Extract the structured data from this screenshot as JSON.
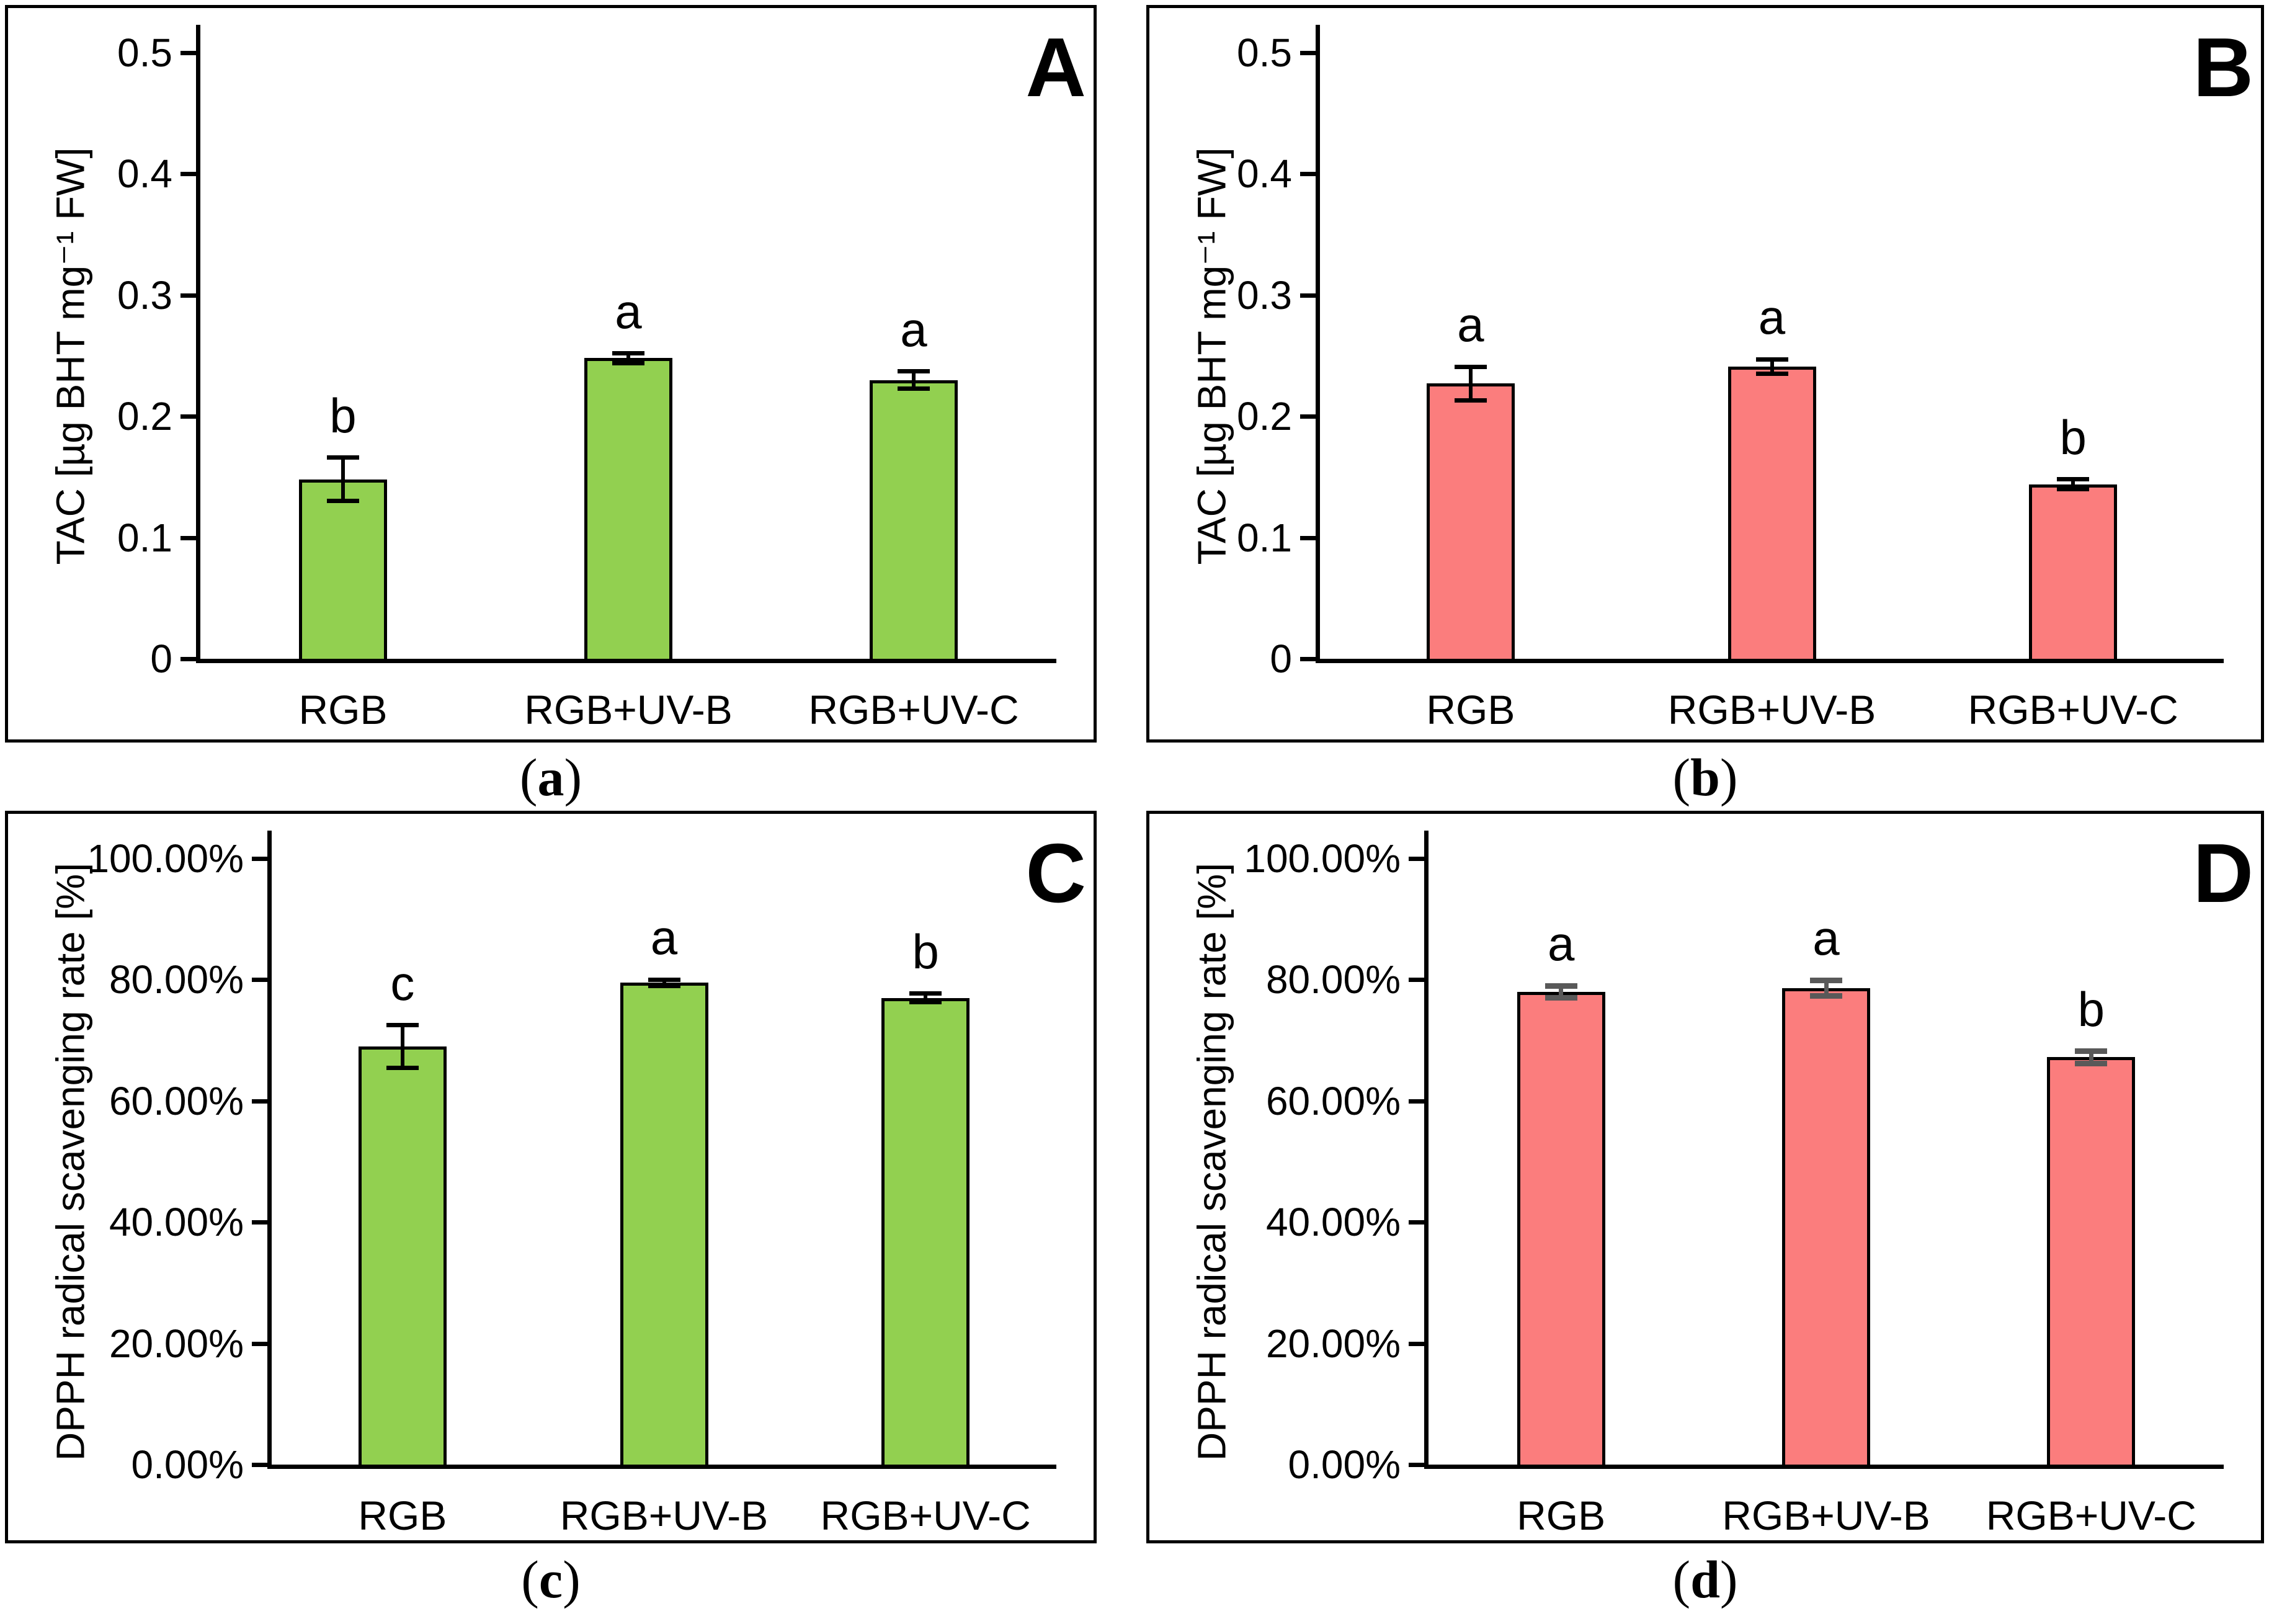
{
  "figure": {
    "background": "#FFFFFF",
    "bar_colors": {
      "green": "#92D050",
      "red": "#FB7D7D"
    },
    "error_colors": {
      "black": "#000000",
      "gray": "#595959"
    }
  },
  "chart_data": [
    {
      "type": "bar",
      "panel_letter": "A",
      "caption_open": "(",
      "caption_letter": "a",
      "caption_close": ")",
      "title": "",
      "xlabel": "",
      "ylabel": "TAC [µg BHT mg⁻¹ FW]",
      "ymin": 0,
      "ymax": 0.5,
      "grid": false,
      "legend": "none",
      "yticks": [
        {
          "value": 0,
          "label": "0"
        },
        {
          "value": 0.1,
          "label": "0.1"
        },
        {
          "value": 0.2,
          "label": "0.2"
        },
        {
          "value": 0.3,
          "label": "0.3"
        },
        {
          "value": 0.4,
          "label": "0.4"
        },
        {
          "value": 0.5,
          "label": "0.5"
        }
      ],
      "categories": [
        "RGB",
        "RGB+UV-B",
        "RGB+UV-C"
      ],
      "series": [
        {
          "name": "TAC",
          "values": [
            0.148,
            0.248,
            0.23
          ],
          "errors": [
            0.018,
            0.004,
            0.007
          ],
          "sig_letters": [
            "b",
            "a",
            "a"
          ]
        }
      ],
      "bar_color": "#92D050",
      "bar_border_color": "#000000",
      "error_color": "#000000"
    },
    {
      "type": "bar",
      "panel_letter": "B",
      "caption_open": "(",
      "caption_letter": "b",
      "caption_close": ")",
      "title": "",
      "xlabel": "",
      "ylabel": "TAC [µg BHT mg⁻¹ FW]",
      "ymin": 0,
      "ymax": 0.5,
      "grid": false,
      "legend": "none",
      "yticks": [
        {
          "value": 0,
          "label": "0"
        },
        {
          "value": 0.1,
          "label": "0.1"
        },
        {
          "value": 0.2,
          "label": "0.2"
        },
        {
          "value": 0.3,
          "label": "0.3"
        },
        {
          "value": 0.4,
          "label": "0.4"
        },
        {
          "value": 0.5,
          "label": "0.5"
        }
      ],
      "categories": [
        "RGB",
        "RGB+UV-B",
        "RGB+UV-C"
      ],
      "series": [
        {
          "name": "TAC",
          "values": [
            0.227,
            0.241,
            0.144
          ],
          "errors": [
            0.014,
            0.006,
            0.004
          ],
          "sig_letters": [
            "a",
            "a",
            "b"
          ]
        }
      ],
      "bar_color": "#FB7D7D",
      "bar_border_color": "#000000",
      "error_color": "#000000"
    },
    {
      "type": "bar",
      "panel_letter": "C",
      "caption_open": "(",
      "caption_letter": "c",
      "caption_close": ")",
      "title": "",
      "xlabel": "",
      "ylabel": "DPPH radical scavenging rate [%]",
      "ymin": 0,
      "ymax": 100,
      "grid": false,
      "legend": "none",
      "yticks": [
        {
          "value": 0,
          "label": "0.00%"
        },
        {
          "value": 20,
          "label": "20.00%"
        },
        {
          "value": 40,
          "label": "40.00%"
        },
        {
          "value": 60,
          "label": "60.00%"
        },
        {
          "value": 80,
          "label": "80.00%"
        },
        {
          "value": 100,
          "label": "100.00%"
        }
      ],
      "categories": [
        "RGB",
        "RGB+UV-B",
        "RGB+UV-C"
      ],
      "series": [
        {
          "name": "DPPH",
          "values": [
            69.0,
            79.5,
            77.0
          ],
          "errors": [
            3.5,
            0.5,
            0.7
          ],
          "sig_letters": [
            "c",
            "a",
            "b"
          ]
        }
      ],
      "bar_color": "#92D050",
      "bar_border_color": "#000000",
      "error_color": "#000000"
    },
    {
      "type": "bar",
      "panel_letter": "D",
      "caption_open": "(",
      "caption_letter": "d",
      "caption_close": ")",
      "title": "",
      "xlabel": "",
      "ylabel": "DPPH radical scavenging rate [%]",
      "ymin": 0,
      "ymax": 100,
      "grid": false,
      "legend": "none",
      "yticks": [
        {
          "value": 0,
          "label": "0.00%"
        },
        {
          "value": 20,
          "label": "20.00%"
        },
        {
          "value": 40,
          "label": "40.00%"
        },
        {
          "value": 60,
          "label": "60.00%"
        },
        {
          "value": 80,
          "label": "80.00%"
        },
        {
          "value": 100,
          "label": "100.00%"
        }
      ],
      "categories": [
        "RGB",
        "RGB+UV-B",
        "RGB+UV-C"
      ],
      "series": [
        {
          "name": "DPPH",
          "values": [
            78.0,
            78.6,
            67.2
          ],
          "errors": [
            1.0,
            1.3,
            1.0
          ],
          "sig_letters": [
            "a",
            "a",
            "b"
          ]
        }
      ],
      "bar_color": "#FB7D7D",
      "bar_border_color": "#000000",
      "error_color": "#595959"
    }
  ]
}
